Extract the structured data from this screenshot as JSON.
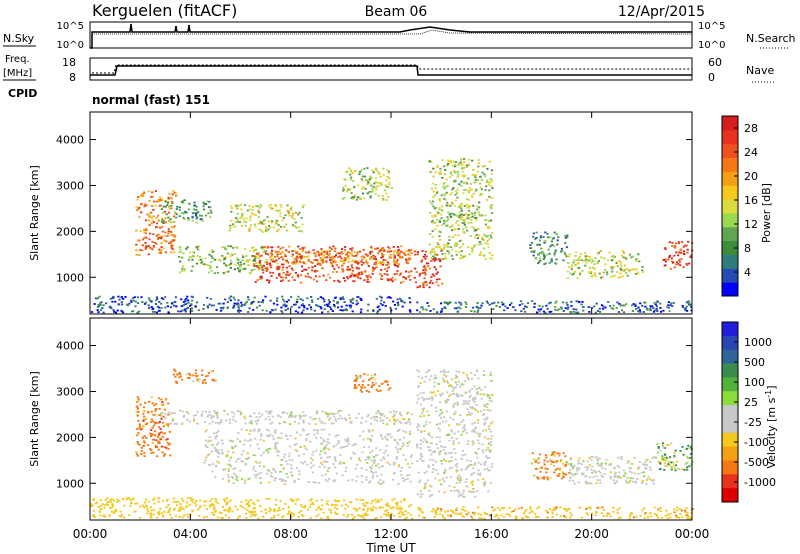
{
  "header": {
    "station": "Kerguelen (fitACF)",
    "beam": "Beam 06",
    "date": "12/Apr/2015"
  },
  "nsky_panel": {
    "left_label": "N.Sky",
    "left_ticks": [
      "10^5",
      "10^0"
    ],
    "right_label": "N.Search",
    "right_ticks": [
      "10^5",
      "10^0"
    ]
  },
  "freq_panel": {
    "left_label_1": "Freq.",
    "left_label_2": "[MHz]",
    "left_ticks": [
      "18",
      "8"
    ],
    "right_label": "Nave",
    "right_ticks": [
      "60",
      "0"
    ],
    "cpid_label": "CPID",
    "cpid_text": "normal (fast) 151"
  },
  "colors": {
    "power_scale": [
      "#0000ff",
      "#234db2",
      "#2e7d7a",
      "#3c8c3c",
      "#5fa552",
      "#9ad84f",
      "#dcdc3c",
      "#f5c81e",
      "#f5a014",
      "#f57814",
      "#f0501e",
      "#e6321e",
      "#d71e1e"
    ],
    "velocity_scale": [
      "#1e1edc",
      "#2846b4",
      "#32649c",
      "#3c8c50",
      "#50b43c",
      "#8cdc3c",
      "#c8c8c8",
      "#c8c8c8",
      "#f5c81e",
      "#f5a014",
      "#f57814",
      "#e6321e",
      "#dc0000"
    ]
  },
  "chart_data": [
    {
      "type": "heatmap",
      "title": "",
      "xlabel": "Time UT",
      "ylabel": "Slant Range [km]",
      "xlim": [
        0,
        24
      ],
      "ylim": [
        200,
        4600
      ],
      "yticks": [
        "1000",
        "2000",
        "3000",
        "4000"
      ],
      "xticks": [
        "00:00",
        "04:00",
        "08:00",
        "12:00",
        "16:00",
        "20:00",
        "00:00"
      ],
      "colorbar": {
        "label": "Power [dB]",
        "ticks": [
          "4",
          "8",
          "12",
          "16",
          "20",
          "24",
          "28"
        ],
        "range": [
          0,
          30
        ]
      },
      "regions": [
        {
          "t": [
            1.8,
            3.4
          ],
          "range": [
            1500,
            2900
          ],
          "value": 22
        },
        {
          "t": [
            2.8,
            4.8
          ],
          "range": [
            2200,
            2700
          ],
          "value": 9
        },
        {
          "t": [
            3.5,
            7.0
          ],
          "range": [
            1100,
            1700
          ],
          "value": 12
        },
        {
          "t": [
            6.5,
            12.8
          ],
          "range": [
            900,
            1700
          ],
          "value": 25
        },
        {
          "t": [
            5.5,
            8.5
          ],
          "range": [
            2000,
            2600
          ],
          "value": 14
        },
        {
          "t": [
            7.0,
            12.8
          ],
          "range": [
            1300,
            1600
          ],
          "value": 20
        },
        {
          "t": [
            10.0,
            12.0
          ],
          "range": [
            2700,
            3400
          ],
          "value": 13
        },
        {
          "t": [
            12.9,
            14.0
          ],
          "range": [
            800,
            1600
          ],
          "value": 26
        },
        {
          "t": [
            13.5,
            16.0
          ],
          "range": [
            1400,
            3600
          ],
          "value": 13
        },
        {
          "t": [
            17.5,
            19.0
          ],
          "range": [
            1300,
            2000
          ],
          "value": 8
        },
        {
          "t": [
            19.0,
            22.0
          ],
          "range": [
            1000,
            1600
          ],
          "value": 14
        },
        {
          "t": [
            22.8,
            24.0
          ],
          "range": [
            1200,
            1800
          ],
          "value": 26
        },
        {
          "t": [
            0.0,
            12.8
          ],
          "range": [
            250,
            600
          ],
          "value": 4
        },
        {
          "t": [
            13.0,
            24.0
          ],
          "range": [
            250,
            500
          ],
          "value": 5
        }
      ]
    },
    {
      "type": "heatmap",
      "title": "",
      "xlabel": "Time UT",
      "ylabel": "Slant Range [km]",
      "xlim": [
        0,
        24
      ],
      "ylim": [
        200,
        4600
      ],
      "yticks": [
        "1000",
        "2000",
        "3000",
        "4000"
      ],
      "xticks": [
        "00:00",
        "04:00",
        "08:00",
        "12:00",
        "16:00",
        "20:00",
        "00:00"
      ],
      "colorbar": {
        "label": "Velocity [m s",
        "label_sup": "-1",
        "ticks": [
          "1000",
          "500",
          "100",
          "25",
          "-25",
          "-100",
          "-500",
          "-1000"
        ]
      },
      "regions": [
        {
          "t": [
            1.8,
            3.2
          ],
          "range": [
            1600,
            2900
          ],
          "value": -300
        },
        {
          "t": [
            2.8,
            12.8
          ],
          "range": [
            2300,
            2600
          ],
          "value": 0
        },
        {
          "t": [
            4.5,
            12.8
          ],
          "range": [
            1000,
            2200
          ],
          "value": 0
        },
        {
          "t": [
            3.2,
            5.0
          ],
          "range": [
            3200,
            3500
          ],
          "value": -200
        },
        {
          "t": [
            10.5,
            12.0
          ],
          "range": [
            3000,
            3400
          ],
          "value": -200
        },
        {
          "t": [
            13.0,
            16.0
          ],
          "range": [
            700,
            3500
          ],
          "value": 0
        },
        {
          "t": [
            17.5,
            19.2
          ],
          "range": [
            1100,
            1700
          ],
          "value": -200
        },
        {
          "t": [
            19.0,
            22.5
          ],
          "range": [
            1000,
            1600
          ],
          "value": 0
        },
        {
          "t": [
            22.5,
            24.0
          ],
          "range": [
            1300,
            1900
          ],
          "value": 150
        },
        {
          "t": [
            0.0,
            12.8
          ],
          "range": [
            250,
            700
          ],
          "value": -60
        },
        {
          "t": [
            13.0,
            24.0
          ],
          "range": [
            250,
            500
          ],
          "value": -80
        }
      ]
    }
  ]
}
